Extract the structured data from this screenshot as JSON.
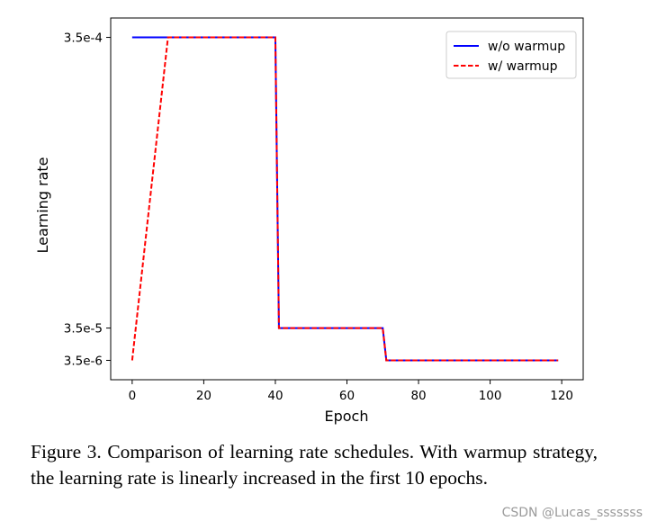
{
  "chart_data": {
    "type": "line",
    "title": "",
    "xlabel": "Epoch",
    "ylabel": "Learning rate",
    "xlim": [
      -6,
      126
    ],
    "xticks": [
      0,
      20,
      40,
      60,
      80,
      100,
      120
    ],
    "ylim_index": [
      -0.6,
      10.6
    ],
    "yticks": [
      {
        "label": "3.5e-4",
        "index": 10
      },
      {
        "label": "3.5e-5",
        "index": 1
      },
      {
        "label": "3.5e-6",
        "index": 0
      }
    ],
    "grid": false,
    "legend_position": "top-right",
    "series": [
      {
        "name": "w/o warmup",
        "color": "#0000ff",
        "style": "solid",
        "x": [
          0,
          40,
          41,
          70,
          71,
          119
        ],
        "y_index": [
          10,
          10,
          1,
          1,
          0,
          0
        ]
      },
      {
        "name": "w/ warmup",
        "color": "#ff0000",
        "style": "dashed",
        "x": [
          0,
          10,
          40,
          41,
          70,
          71,
          119
        ],
        "y_index": [
          0,
          10,
          10,
          1,
          1,
          0,
          0
        ]
      }
    ]
  },
  "caption": "Figure 3. Comparison of learning rate schedules. With warmup strategy, the learning rate is linearly increased in the first 10 epochs.",
  "watermark": "CSDN @Lucas_sssssss"
}
